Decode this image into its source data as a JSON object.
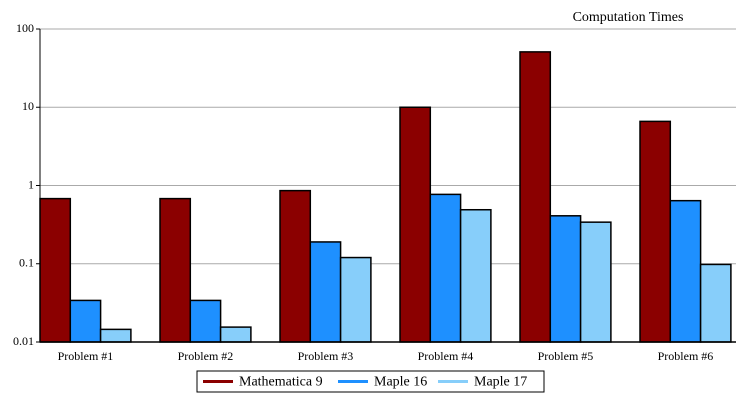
{
  "chart_data": {
    "type": "bar",
    "title": "Computation Times",
    "categories": [
      "Problem #1",
      "Problem #2",
      "Problem #3",
      "Problem #4",
      "Problem #5",
      "Problem #6"
    ],
    "series": [
      {
        "name": "Mathematica 9",
        "color": "#8b0000",
        "values": [
          0.68,
          0.68,
          0.86,
          10,
          51,
          6.6
        ]
      },
      {
        "name": "Maple 16",
        "color": "#1e90ff",
        "values": [
          0.034,
          0.034,
          0.19,
          0.77,
          0.41,
          0.64
        ]
      },
      {
        "name": "Maple 17",
        "color": "#87cefa",
        "values": [
          0.0145,
          0.0155,
          0.12,
          0.49,
          0.34,
          0.098
        ]
      }
    ],
    "ylim": [
      0.01,
      100
    ],
    "yticks": [
      0.01,
      0.1,
      1,
      10,
      100
    ],
    "log_y": true,
    "grid": true,
    "legend": "bottom"
  }
}
